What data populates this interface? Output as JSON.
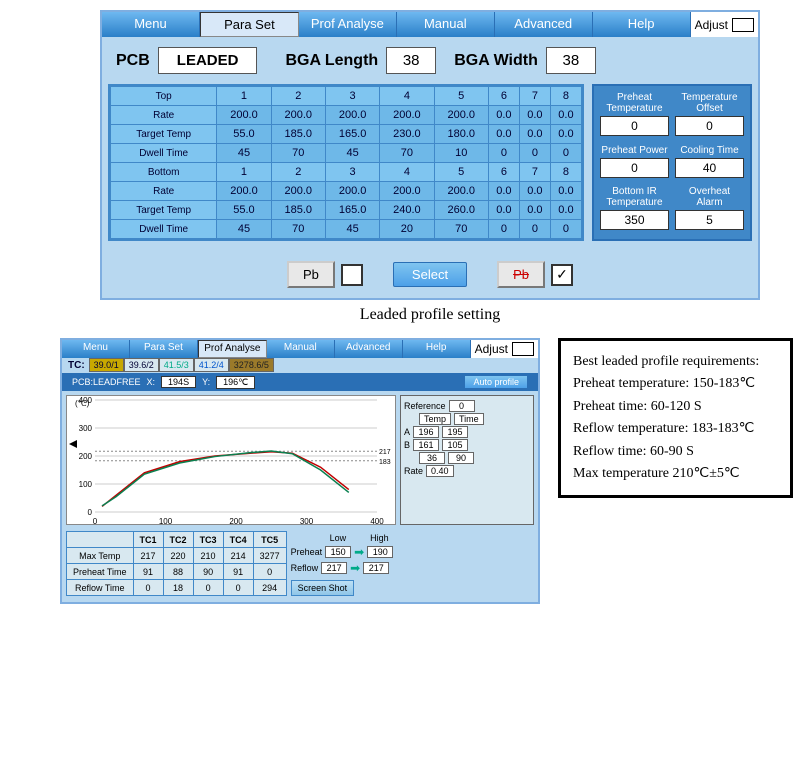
{
  "tabs": [
    "Menu",
    "Para Set",
    "Prof Analyse",
    "Manual",
    "Advanced",
    "Help"
  ],
  "tabs_active": 1,
  "adjust_label": "Adjust",
  "pcb": {
    "label": "PCB",
    "value": "LEADED",
    "bga_len_label": "BGA Length",
    "bga_len": "38",
    "bga_wid_label": "BGA Width",
    "bga_wid": "38"
  },
  "top": {
    "header": "Top",
    "cols": [
      "1",
      "2",
      "3",
      "4",
      "5",
      "6",
      "7",
      "8"
    ],
    "rate_label": "Rate",
    "rate": [
      "200.0",
      "200.0",
      "200.0",
      "200.0",
      "200.0",
      "0.0",
      "0.0",
      "0.0"
    ],
    "tt_label": "Target Temp",
    "tt": [
      "55.0",
      "185.0",
      "165.0",
      "230.0",
      "180.0",
      "0.0",
      "0.0",
      "0.0"
    ],
    "dw_label": "Dwell Time",
    "dw": [
      "45",
      "70",
      "45",
      "70",
      "10",
      "0",
      "0",
      "0"
    ]
  },
  "bot": {
    "header": "Bottom",
    "cols": [
      "1",
      "2",
      "3",
      "4",
      "5",
      "6",
      "7",
      "8"
    ],
    "rate_label": "Rate",
    "rate": [
      "200.0",
      "200.0",
      "200.0",
      "200.0",
      "200.0",
      "0.0",
      "0.0",
      "0.0"
    ],
    "tt_label": "Target Temp",
    "tt": [
      "55.0",
      "185.0",
      "165.0",
      "240.0",
      "260.0",
      "0.0",
      "0.0",
      "0.0"
    ],
    "dw_label": "Dwell Time",
    "dw": [
      "45",
      "70",
      "45",
      "20",
      "70",
      "0",
      "0",
      "0"
    ]
  },
  "side": [
    {
      "cap": "Preheat Temperature",
      "val": "0"
    },
    {
      "cap": "Temperature Offset",
      "val": "0"
    },
    {
      "cap": "Preheat Power",
      "val": "0"
    },
    {
      "cap": "Cooling Time",
      "val": "40"
    },
    {
      "cap": "Bottom IR Temperature",
      "val": "350"
    },
    {
      "cap": "Overheat Alarm",
      "val": "5"
    }
  ],
  "buttons": {
    "pb": "Pb",
    "select": "Select",
    "pb_strike": "Pb"
  },
  "caption1": "Leaded profile setting",
  "win2": {
    "tabs_active": 2,
    "tc_label": "TC:",
    "tc": [
      {
        "txt": "39.0/1",
        "bg": "#c8a800",
        "fg": "#003"
      },
      {
        "txt": "39.6/2",
        "bg": "#d8e8f0",
        "fg": "#003"
      },
      {
        "txt": "41.5/3",
        "bg": "#d8e8f0",
        "fg": "#0a8"
      },
      {
        "txt": "41.2/4",
        "bg": "#d8e8f0",
        "fg": "#05c"
      },
      {
        "txt": "3278.6/5",
        "bg": "#9b7a2a",
        "fg": "#222"
      }
    ],
    "info": {
      "pcb": "PCB:LEADFREE",
      "x_label": "X:",
      "x": "194S",
      "y_label": "Y:",
      "y": "196℃",
      "auto": "Auto profile"
    },
    "chart": {
      "xlim": [
        0,
        400
      ],
      "ylim": [
        0,
        400
      ],
      "xtick": [
        0,
        100,
        200,
        300,
        400
      ],
      "ytick": [
        0,
        100,
        200,
        300,
        400
      ],
      "bg": "#ffffff",
      "grid": "#cccccc",
      "lines": [
        {
          "color": "#c00000",
          "pts": [
            [
              10,
              20
            ],
            [
              30,
              60
            ],
            [
              70,
              140
            ],
            [
              120,
              180
            ],
            [
              170,
              200
            ],
            [
              220,
              210
            ],
            [
              250,
              215
            ],
            [
              280,
              210
            ],
            [
              320,
              160
            ],
            [
              360,
              80
            ]
          ]
        },
        {
          "color": "#0a8050",
          "pts": [
            [
              10,
              22
            ],
            [
              30,
              55
            ],
            [
              70,
              135
            ],
            [
              120,
              175
            ],
            [
              170,
              198
            ],
            [
              220,
              212
            ],
            [
              250,
              218
            ],
            [
              280,
              208
            ],
            [
              320,
              150
            ],
            [
              360,
              70
            ]
          ]
        }
      ],
      "marks": [
        {
          "y": 217,
          "txt": "217"
        },
        {
          "y": 183,
          "txt": "183"
        }
      ]
    },
    "mini": {
      "ref_label": "Reference",
      "ref": "0",
      "temp_label": "Temp",
      "time_label": "Time",
      "a_label": "A",
      "a_temp": "196",
      "a_time": "195",
      "b_label": "B",
      "b_temp": "161",
      "b_time": "105",
      "c_temp": "36",
      "c_time": "90",
      "rate_label": "Rate",
      "rate": "0.40"
    },
    "tctable": {
      "cols": [
        "TC1",
        "TC2",
        "TC3",
        "TC4",
        "TC5"
      ],
      "rows": [
        {
          "h": "Max Temp",
          "v": [
            "217",
            "220",
            "210",
            "214",
            "3277"
          ]
        },
        {
          "h": "Preheat Time",
          "v": [
            "91",
            "88",
            "90",
            "91",
            "0"
          ]
        },
        {
          "h": "Reflow Time",
          "v": [
            "0",
            "18",
            "0",
            "0",
            "294"
          ]
        }
      ]
    },
    "rside": {
      "low": "Low",
      "high": "High",
      "preheat_label": "Preheat",
      "pre_low": "150",
      "pre_high": "190",
      "reflow_label": "Reflow",
      "ref_low": "217",
      "ref_high": "217",
      "ss": "Screen Shot"
    }
  },
  "req": {
    "title": "Best leaded profile requirements:",
    "l1": "Preheat temperature:    150-183℃",
    "l2": "Preheat    time:                60-120 S",
    "l3": "Reflow temperature:     183-183℃",
    "l4": "Reflow    time:                 60-90 S",
    "l5": "Max temperature 210℃±5℃"
  }
}
